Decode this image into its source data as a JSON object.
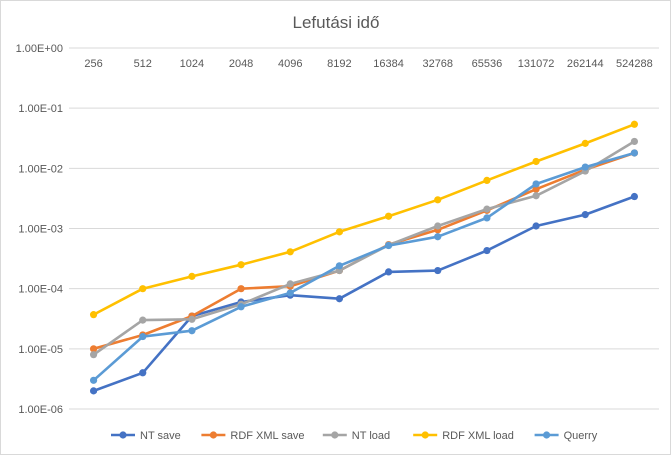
{
  "chart_data": {
    "type": "line",
    "title": "Lefutási idő",
    "yscale": "log",
    "ylim": [
      1e-06,
      1
    ],
    "yticks": [
      "1.00E-06",
      "1.00E-05",
      "1.00E-04",
      "1.00E-03",
      "1.00E-02",
      "1.00E-01",
      "1.00E+00"
    ],
    "ytick_values": [
      1e-06,
      1e-05,
      0.0001,
      0.001,
      0.01,
      0.1,
      1
    ],
    "categories": [
      "256",
      "512",
      "1024",
      "2048",
      "4096",
      "8192",
      "16384",
      "32768",
      "65536",
      "131072",
      "262144",
      "524288"
    ],
    "x_labels_position": "top",
    "grid": true,
    "legend": "bottom",
    "series": [
      {
        "name": "NT save",
        "color": "#4472C4",
        "values": [
          2e-06,
          4e-06,
          3.5e-05,
          6e-05,
          7.8e-05,
          6.8e-05,
          0.00019,
          0.0002,
          0.00043,
          0.0011,
          0.0017,
          0.0034
        ]
      },
      {
        "name": "RDF XML save",
        "color": "#ED7D31",
        "values": [
          1e-05,
          1.7e-05,
          3.5e-05,
          0.0001,
          0.00011,
          0.0002,
          0.00054,
          0.00095,
          0.002,
          0.0045,
          0.0095,
          0.018
        ]
      },
      {
        "name": "NT load",
        "color": "#A5A5A5",
        "values": [
          8e-06,
          3e-05,
          3.1e-05,
          5.5e-05,
          0.00012,
          0.0002,
          0.00053,
          0.0011,
          0.0021,
          0.0035,
          0.009,
          0.028
        ]
      },
      {
        "name": "RDF XML load",
        "color": "#FFC000",
        "values": [
          3.7e-05,
          0.0001,
          0.00016,
          0.00025,
          0.00041,
          0.00088,
          0.0016,
          0.003,
          0.0063,
          0.013,
          0.026,
          0.054
        ]
      },
      {
        "name": "Querry",
        "color": "#5B9BD5",
        "values": [
          3e-06,
          1.6e-05,
          2e-05,
          5e-05,
          8.5e-05,
          0.00024,
          0.00052,
          0.00073,
          0.0015,
          0.0055,
          0.0105,
          0.018
        ]
      }
    ]
  }
}
